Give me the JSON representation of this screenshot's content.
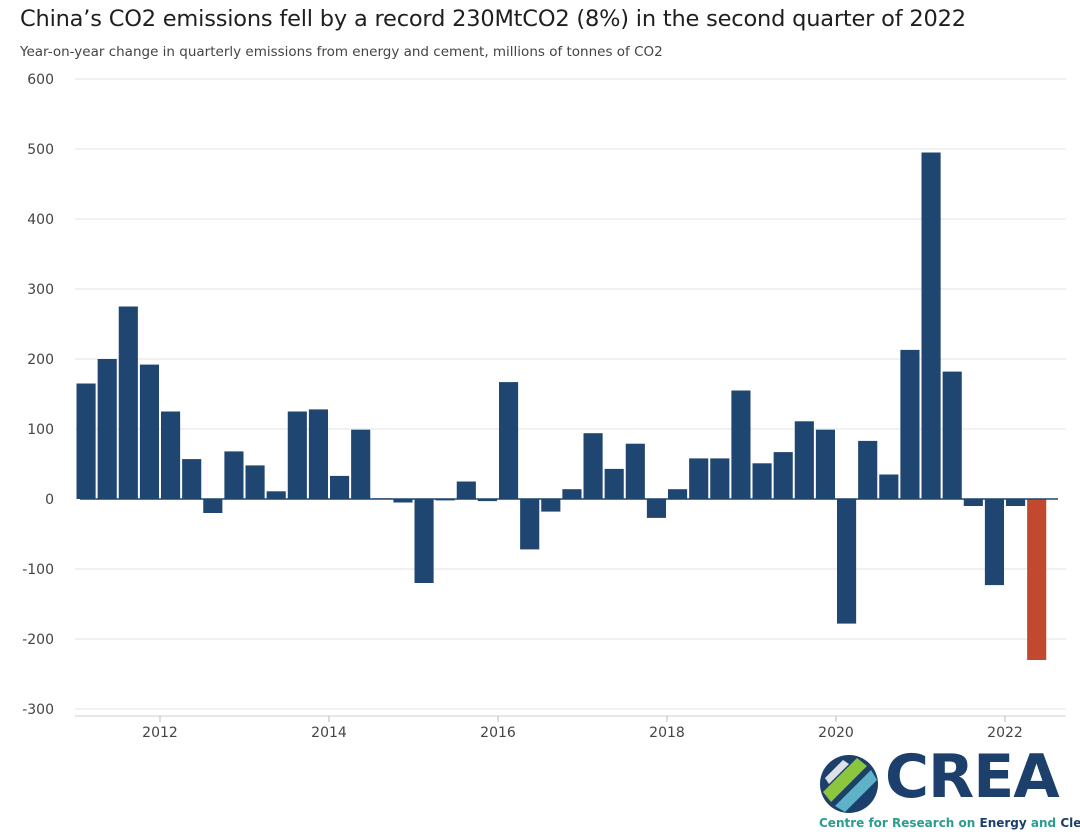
{
  "header": {
    "title": "China’s CO2 emissions fell by a record 230MtCO2 (8%) in the second quarter of 2022",
    "subtitle": "Year-on-year change in quarterly emissions from energy and cement, millions of tonnes of CO2"
  },
  "chart_data": {
    "type": "bar",
    "title": "China’s CO2 emissions fell by a record 230MtCO2 (8%) in the second quarter of 2022",
    "subtitle": "Year-on-year change in quarterly emissions from energy and cement, millions of tonnes of CO2",
    "xlabel": "",
    "ylabel": "",
    "ylim": [
      -300,
      600
    ],
    "yticks": [
      -300,
      -200,
      -100,
      0,
      100,
      200,
      300,
      400,
      500,
      600
    ],
    "xticks": [
      2012,
      2014,
      2016,
      2018,
      2020,
      2022
    ],
    "categories": [
      "2011 Q1",
      "2011 Q2",
      "2011 Q3",
      "2011 Q4",
      "2012 Q1",
      "2012 Q2",
      "2012 Q3",
      "2012 Q4",
      "2013 Q1",
      "2013 Q2",
      "2013 Q3",
      "2013 Q4",
      "2014 Q1",
      "2014 Q2",
      "2014 Q3",
      "2014 Q4",
      "2015 Q1",
      "2015 Q2",
      "2015 Q3",
      "2015 Q4",
      "2016 Q1",
      "2016 Q2",
      "2016 Q3",
      "2016 Q4",
      "2017 Q1",
      "2017 Q2",
      "2017 Q3",
      "2017 Q4",
      "2018 Q1",
      "2018 Q2",
      "2018 Q3",
      "2018 Q4",
      "2019 Q1",
      "2019 Q2",
      "2019 Q3",
      "2019 Q4",
      "2020 Q1",
      "2020 Q2",
      "2020 Q3",
      "2020 Q4",
      "2021 Q1",
      "2021 Q2",
      "2021 Q3",
      "2021 Q4",
      "2022 Q1",
      "2022 Q2"
    ],
    "values": [
      165,
      200,
      275,
      192,
      125,
      57,
      -20,
      68,
      48,
      11,
      125,
      128,
      33,
      99,
      1,
      -5,
      -120,
      -2,
      25,
      -3,
      167,
      -72,
      -18,
      14,
      94,
      43,
      79,
      -27,
      14,
      58,
      58,
      155,
      51,
      67,
      111,
      99,
      -178,
      83,
      35,
      213,
      495,
      182,
      -10,
      -123,
      -10,
      -230
    ],
    "highlight_index": 45,
    "colors": {
      "bar": "#1f4670",
      "highlight": "#c0492f",
      "grid": "#e3e3e3",
      "zero_line": "#1f4670"
    }
  },
  "logo": {
    "word": "CREA",
    "tagline_1": "Centre for Research on ",
    "tagline_2": "Energy",
    "tagline_3": " and ",
    "tagline_4": "Clean Air"
  }
}
